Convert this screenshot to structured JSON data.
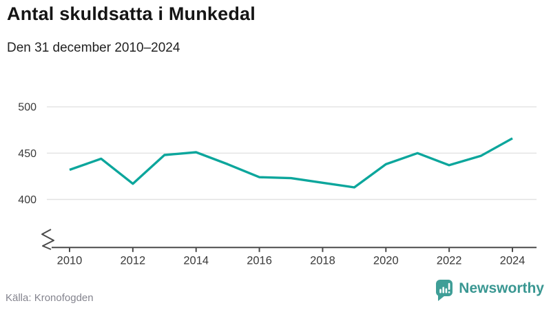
{
  "header": {
    "title": "Antal skuldsatta i Munkedal",
    "subtitle": "Den 31 december 2010–2024"
  },
  "footer": {
    "source": "Källa: Kronofogden",
    "brand": "Newsworthy"
  },
  "colors": {
    "line": "#0ca69c",
    "brand_teal": "#3f9e97",
    "grid": "#e2e2e2",
    "axis": "#4a4a4a",
    "tick_text": "#3a3a3a"
  },
  "chart_data": {
    "type": "line",
    "title": "Antal skuldsatta i Munkedal",
    "subtitle": "Den 31 december 2010–2024",
    "x": [
      2010,
      2011,
      2012,
      2013,
      2014,
      2015,
      2016,
      2017,
      2018,
      2019,
      2020,
      2021,
      2022,
      2023,
      2024
    ],
    "series": [
      {
        "name": "Antal skuldsatta",
        "values": [
          432,
          444,
          417,
          448,
          451,
          438,
          424,
          423,
          418,
          413,
          438,
          450,
          437,
          447,
          466
        ]
      }
    ],
    "xlabel": "",
    "ylabel": "",
    "ylim": [
      400,
      500
    ],
    "yticks": [
      400,
      450,
      500
    ],
    "xticks": [
      2010,
      2012,
      2014,
      2016,
      2018,
      2020,
      2022,
      2024
    ],
    "grid": "horizontal",
    "legend": "none",
    "y_axis_break": true,
    "source": "Källa: Kronofogden"
  }
}
